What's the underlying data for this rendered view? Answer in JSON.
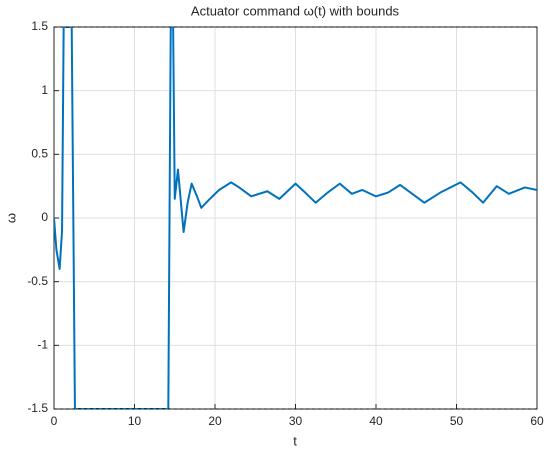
{
  "chart_data": {
    "type": "line",
    "title": "Actuator command ω(t) with bounds",
    "x_label": "t",
    "y_label": "ω",
    "x": [
      0,
      0.3,
      0.7,
      1.0,
      1.2,
      2.2,
      2.6,
      14.2,
      14.5,
      14.8,
      15.0,
      15.4,
      15.8,
      16.1,
      16.6,
      17.1,
      17.7,
      18.3,
      19.2,
      20.5,
      22,
      23,
      24.5,
      26.5,
      28,
      30,
      31.2,
      32.5,
      34,
      35.5,
      37,
      38.3,
      40,
      41.5,
      43,
      44.5,
      46,
      48,
      50.5,
      52,
      53.3,
      55,
      56.5,
      58.5,
      60
    ],
    "series": [
      {
        "color": "#0072bd",
        "values": [
          0,
          -0.25,
          -0.4,
          -0.1,
          1.5,
          1.5,
          -1.5,
          -1.5,
          1.5,
          1.5,
          0.15,
          0.38,
          0.1,
          -0.11,
          0.12,
          0.27,
          0.18,
          0.08,
          0.14,
          0.22,
          0.28,
          0.24,
          0.17,
          0.21,
          0.15,
          0.27,
          0.2,
          0.12,
          0.2,
          0.27,
          0.19,
          0.22,
          0.17,
          0.2,
          0.26,
          0.19,
          0.12,
          0.2,
          0.28,
          0.2,
          0.12,
          0.25,
          0.19,
          0.24,
          0.22
        ]
      }
    ],
    "bounds": [
      -1.5,
      1.5
    ],
    "xlim": [
      0,
      60
    ],
    "ylim": [
      -1.5,
      1.5
    ],
    "xticks": [
      0,
      10,
      20,
      30,
      40,
      50,
      60
    ],
    "yticks": [
      -1.5,
      -1,
      -0.5,
      0,
      0.5,
      1,
      1.5
    ],
    "grid": true
  }
}
